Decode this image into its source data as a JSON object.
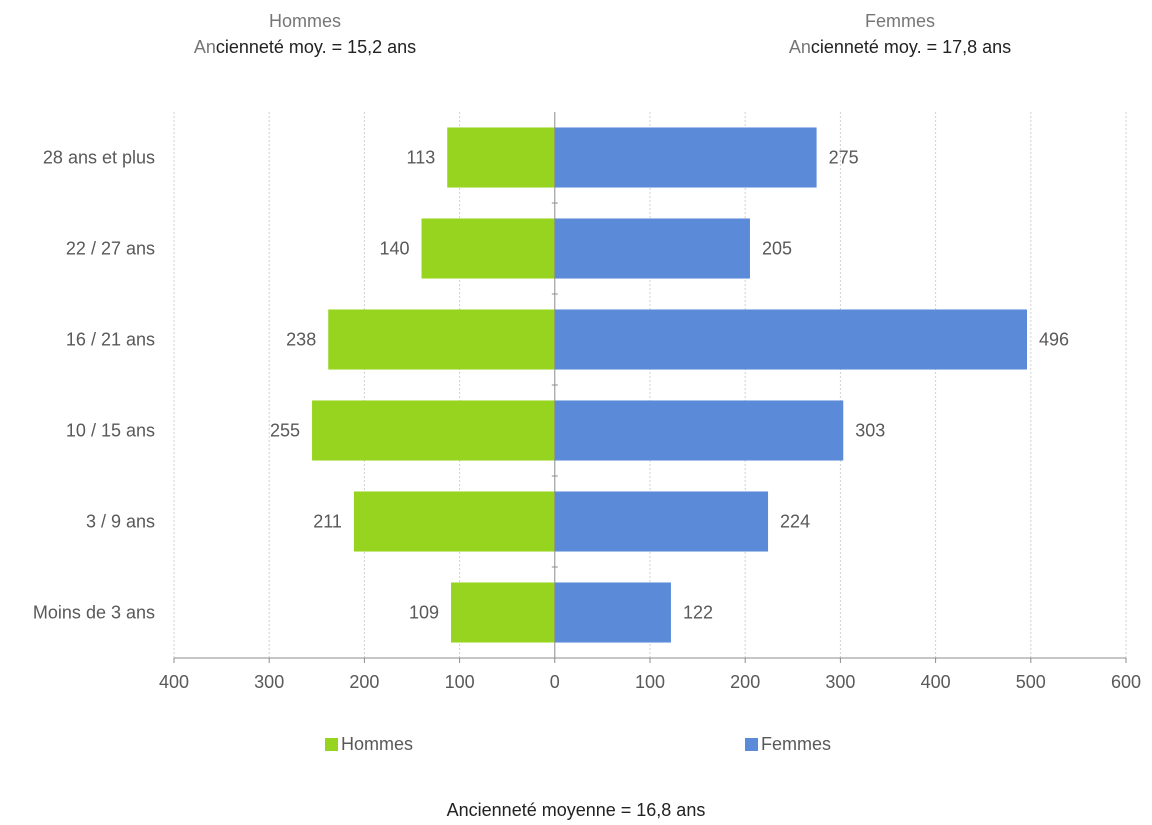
{
  "headers": {
    "hommes": {
      "name": "Hommes",
      "avg_prefix": "An",
      "avg_rest": "cienneté moy. = 15,2 ans"
    },
    "femmes": {
      "name": "Femmes",
      "avg_prefix": "An",
      "avg_rest": "cienneté moy. = 17,8 ans"
    }
  },
  "footer": "Ancienneté moyenne = 16,8 ans",
  "legend": {
    "hommes": "Hommes",
    "femmes": "Femmes"
  },
  "colors": {
    "hommes": "#96d41f",
    "femmes": "#5b8ad8",
    "grid": "#d0d0d0",
    "axis": "#8c8c8c"
  },
  "chart_data": {
    "type": "bar",
    "orientation": "horizontal",
    "layout": "population-pyramid",
    "categories": [
      "28 ans et plus",
      "22 / 27 ans",
      "16 / 21 ans",
      "10 / 15 ans",
      "3 / 9 ans",
      "Moins de 3 ans"
    ],
    "series": [
      {
        "name": "Hommes",
        "side": "left",
        "values": [
          113,
          140,
          238,
          255,
          211,
          109
        ]
      },
      {
        "name": "Femmes",
        "side": "right",
        "values": [
          275,
          205,
          496,
          303,
          224,
          122
        ]
      }
    ],
    "x_ticks": [
      "400",
      "300",
      "200",
      "100",
      "0",
      "100",
      "200",
      "300",
      "400",
      "500",
      "600"
    ],
    "xlim": [
      -400,
      600
    ],
    "grid": true,
    "data_labels": true,
    "legend_position": "bottom"
  }
}
